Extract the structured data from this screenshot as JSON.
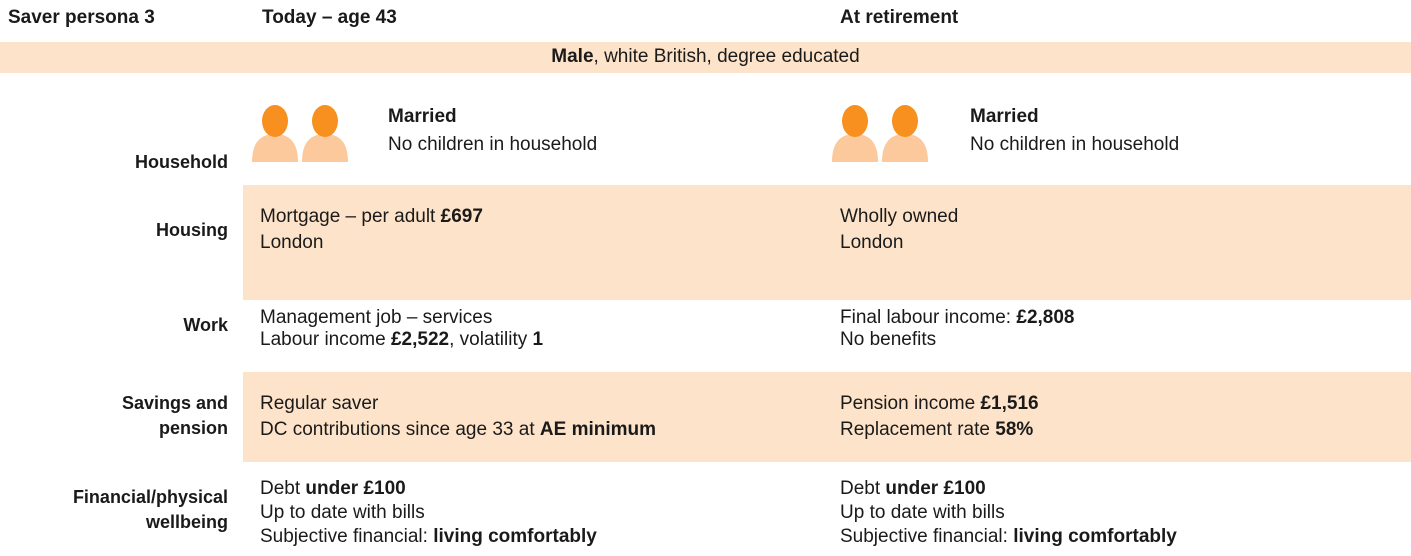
{
  "header": {
    "title": "Saver persona 3",
    "today": "Today – age 43",
    "retirement": "At retirement"
  },
  "banner": [
    {
      "text": "Male",
      "bold": true
    },
    {
      "text": ", white British, degree educated"
    }
  ],
  "rows": [
    {
      "label": [
        "Household"
      ],
      "icons": true,
      "today": [
        [
          {
            "text": "Married",
            "bold": true
          }
        ],
        [
          {
            "text": "No children in household"
          }
        ]
      ],
      "retirement": [
        [
          {
            "text": "Married",
            "bold": true
          }
        ],
        [
          {
            "text": "No children in household"
          }
        ]
      ]
    },
    {
      "label": [
        "Housing"
      ],
      "shaded": true,
      "today": [
        [
          {
            "text": "Mortgage – per adult "
          },
          {
            "text": "£697",
            "bold": true
          }
        ],
        [
          {
            "text": "London"
          }
        ]
      ],
      "retirement": [
        [
          {
            "text": "Wholly owned"
          }
        ],
        [
          {
            "text": "London"
          }
        ]
      ]
    },
    {
      "label": [
        "Work"
      ],
      "today": [
        [
          {
            "text": "Management job – services"
          }
        ],
        [
          {
            "text": "Labour income "
          },
          {
            "text": "£2,522",
            "bold": true
          },
          {
            "text": ", volatility "
          },
          {
            "text": "1",
            "bold": true
          }
        ]
      ],
      "retirement": [
        [
          {
            "text": "Final labour income: "
          },
          {
            "text": "£2,808",
            "bold": true
          }
        ],
        [
          {
            "text": "No benefits"
          }
        ]
      ]
    },
    {
      "label": [
        "Savings and",
        "pension"
      ],
      "shaded": true,
      "today": [
        [
          {
            "text": "Regular saver"
          }
        ],
        [
          {
            "text": "DC contributions since age 33 at "
          },
          {
            "text": "AE minimum",
            "bold": true
          }
        ]
      ],
      "retirement": [
        [
          {
            "text": "Pension income "
          },
          {
            "text": "£1,516",
            "bold": true
          }
        ],
        [
          {
            "text": "Replacement rate "
          },
          {
            "text": "58%",
            "bold": true
          }
        ]
      ]
    },
    {
      "label": [
        "Financial/physical",
        "wellbeing"
      ],
      "today": [
        [
          {
            "text": "Debt "
          },
          {
            "text": "under £100",
            "bold": true
          }
        ],
        [
          {
            "text": "Up to date with bills"
          }
        ],
        [
          {
            "text": "Subjective financial: "
          },
          {
            "text": "living comfortably",
            "bold": true
          }
        ]
      ],
      "retirement": [
        [
          {
            "text": "Debt "
          },
          {
            "text": "under £100",
            "bold": true
          }
        ],
        [
          {
            "text": "Up to date with bills"
          }
        ],
        [
          {
            "text": "Subjective financial: "
          },
          {
            "text": "living comfortably",
            "bold": true
          }
        ]
      ]
    }
  ]
}
